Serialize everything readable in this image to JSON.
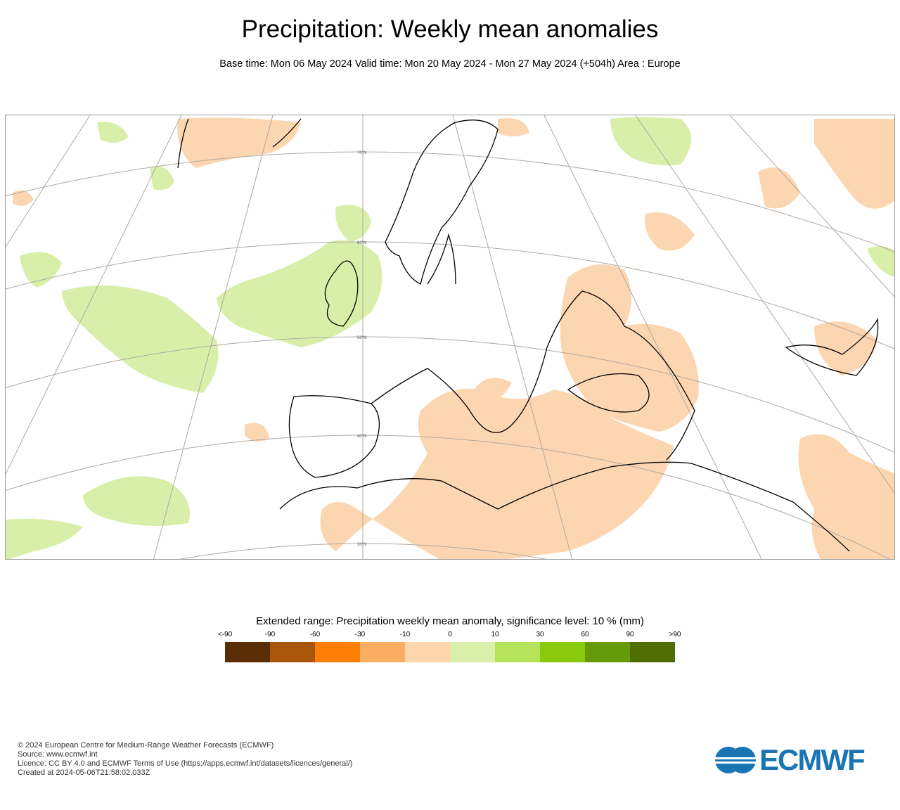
{
  "header": {
    "title": "Precipitation: Weekly mean anomalies",
    "subtitle": "Base time: Mon 06 May 2024 Valid time: Mon 20 May 2024 - Mon 27 May 2024 (+504h) Area : Europe"
  },
  "map": {
    "area": "Europe",
    "latitude_labels": [
      "70°N",
      "60°N",
      "50°N",
      "40°N",
      "30°N"
    ],
    "colors": {
      "wet_anomaly": "#d8efaa",
      "dry_anomaly": "#fcd6b0",
      "coastline": "#000000",
      "graticule": "#b0a8a0"
    }
  },
  "legend": {
    "title": "Extended range: Precipitation weekly mean anomaly, significance level: 10 % (mm)",
    "ticks": [
      "<-90",
      "-90",
      "-60",
      "-30",
      "-10",
      "0",
      "10",
      "30",
      "60",
      "90",
      ">90"
    ],
    "colors": [
      "#5a2d06",
      "#a8560a",
      "#fd7f08",
      "#fbae62",
      "#fdd6ad",
      "#d9efaa",
      "#b5e45c",
      "#89cb0c",
      "#679a08",
      "#4f6e06"
    ]
  },
  "footer": {
    "lines": [
      "© 2024 European Centre for Medium-Range Weather Forecasts (ECMWF)",
      "Source: www.ecmwf.int",
      "Licence: CC BY 4.0 and ECMWF Terms of Use (https://apps.ecmwf.int/datasets/licences/general/)",
      "Created at 2024-05-06T21:58:02.033Z"
    ],
    "logo_text": "ECMWF"
  }
}
